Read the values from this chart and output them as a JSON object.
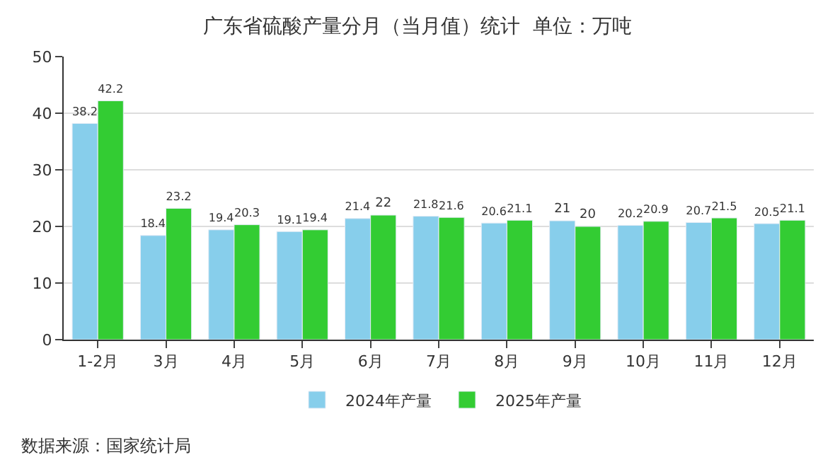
{
  "chart_data": {
    "type": "bar",
    "title": "广东省硫酸产量分月（当月值）统计  单位：万吨",
    "categories": [
      "1-2月",
      "3月",
      "4月",
      "5月",
      "6月",
      "7月",
      "8月",
      "9月",
      "10月",
      "11月",
      "12月"
    ],
    "series": [
      {
        "name": "2024年产量",
        "color": "#87ceeb",
        "values": [
          38.2,
          18.4,
          19.4,
          19.1,
          21.4,
          21.8,
          20.6,
          21,
          20.2,
          20.7,
          20.5
        ]
      },
      {
        "name": "2025年产量",
        "color": "#33cc33",
        "values": [
          42.2,
          23.2,
          20.3,
          19.4,
          22,
          21.6,
          21.1,
          20,
          20.9,
          21.5,
          21.1
        ]
      }
    ],
    "ylim": [
      0,
      50
    ],
    "yticks": [
      0,
      10,
      20,
      30,
      40,
      50
    ],
    "grid": "y",
    "legend": "bottom",
    "data_labels": true,
    "annotations": [
      "数据来源：国家统计局"
    ]
  }
}
